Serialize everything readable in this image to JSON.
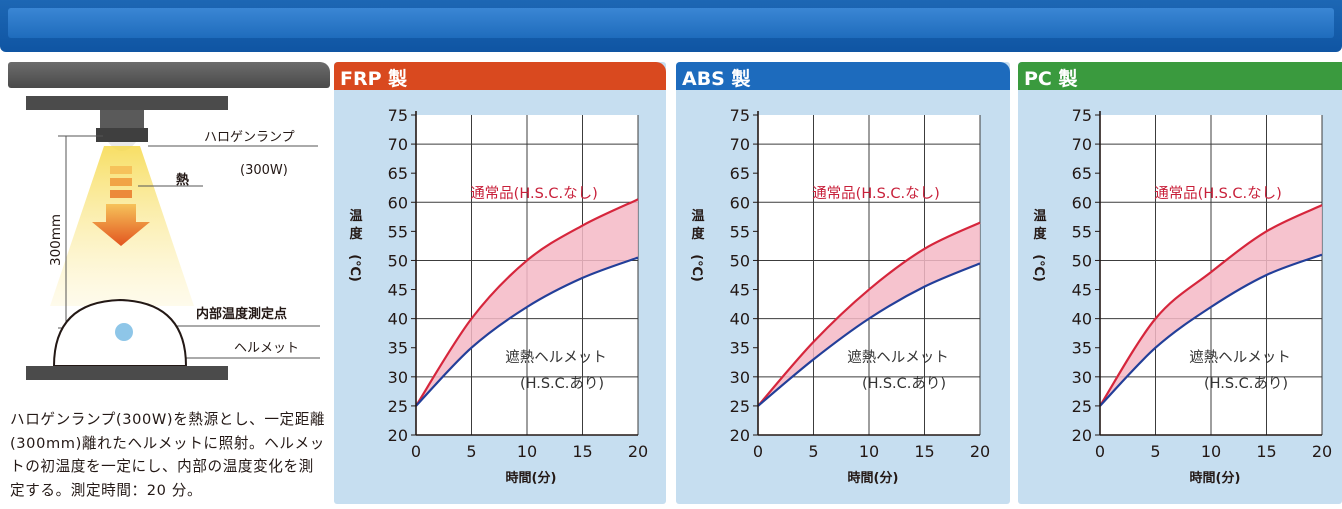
{
  "colors": {
    "top_band": "#1d67b4",
    "frp_header": "#d9491f",
    "abs_header": "#1d6bbd",
    "pc_header": "#3a9a3e",
    "panel_bg": "#c6def0",
    "standard_line": "#d6263c",
    "shield_line": "#233f99",
    "band_fill": "#f4b9c5"
  },
  "left_panel": {
    "header_text": "",
    "diagram": {
      "lamp_label": "ハロゲンランプ",
      "lamp_watt": "(300W)",
      "heat_label": "熱",
      "distance_label": "300mm",
      "measure_point_label": "内部温度測定点",
      "helmet_label": "ヘルメット"
    },
    "description": "ハロゲンランプ(300W)を熱源とし、一定距離(300mm)離れたヘルメットに照射。ヘルメットの初温度を一定にし、内部の温度変化を測定する。測定時間：20 分。"
  },
  "charts": [
    {
      "title": "FRP 製",
      "header_color": "#d9491f",
      "standard_label": "通常品(H.S.C.なし)",
      "shield_label_1": "遮熱ヘルメット",
      "shield_label_2": "(H.S.C.あり)",
      "xlabel": "時間(分)",
      "ylabel": [
        "温",
        "度",
        "(℃)"
      ]
    },
    {
      "title": "ABS 製",
      "header_color": "#1d6bbd",
      "standard_label": "通常品(H.S.C.なし)",
      "shield_label_1": "遮熱ヘルメット",
      "shield_label_2": "(H.S.C.あり)",
      "xlabel": "時間(分)",
      "ylabel": [
        "温",
        "度",
        "(℃)"
      ]
    },
    {
      "title": "PC 製",
      "header_color": "#3a9a3e",
      "standard_label": "通常品(H.S.C.なし)",
      "shield_label_1": "遮熱ヘルメット",
      "shield_label_2": "(H.S.C.あり)",
      "xlabel": "時間(分)",
      "ylabel": [
        "温",
        "度",
        "(℃)"
      ]
    }
  ],
  "chart_data": [
    {
      "type": "line",
      "title": "FRP 製",
      "xlabel": "時間(分)",
      "ylabel": "温度(℃)",
      "xlim": [
        0,
        20
      ],
      "ylim": [
        20,
        75
      ],
      "xticks": [
        0,
        5,
        10,
        15,
        20
      ],
      "yticks": [
        20,
        25,
        30,
        35,
        40,
        45,
        50,
        55,
        60,
        65,
        70,
        75
      ],
      "grid": true,
      "x": [
        0,
        5,
        10,
        15,
        20
      ],
      "series": [
        {
          "name": "通常品(H.S.C.なし)",
          "values": [
            25,
            40,
            50,
            56,
            60.5
          ]
        },
        {
          "name": "遮熱ヘルメット(H.S.C.あり)",
          "values": [
            25,
            35,
            42,
            47,
            50.5
          ]
        }
      ]
    },
    {
      "type": "line",
      "title": "ABS 製",
      "xlabel": "時間(分)",
      "ylabel": "温度(℃)",
      "xlim": [
        0,
        20
      ],
      "ylim": [
        20,
        75
      ],
      "xticks": [
        0,
        5,
        10,
        15,
        20
      ],
      "yticks": [
        20,
        25,
        30,
        35,
        40,
        45,
        50,
        55,
        60,
        65,
        70,
        75
      ],
      "grid": true,
      "x": [
        0,
        5,
        10,
        15,
        20
      ],
      "series": [
        {
          "name": "通常品(H.S.C.なし)",
          "values": [
            25,
            36,
            45,
            52,
            56.5
          ]
        },
        {
          "name": "遮熱ヘルメット(H.S.C.あり)",
          "values": [
            25,
            33,
            40,
            45.5,
            49.5
          ]
        }
      ]
    },
    {
      "type": "line",
      "title": "PC 製",
      "xlabel": "時間(分)",
      "ylabel": "温度(℃)",
      "xlim": [
        0,
        20
      ],
      "ylim": [
        20,
        75
      ],
      "xticks": [
        0,
        5,
        10,
        15,
        20
      ],
      "yticks": [
        20,
        25,
        30,
        35,
        40,
        45,
        50,
        55,
        60,
        65,
        70,
        75
      ],
      "grid": true,
      "x": [
        0,
        5,
        10,
        15,
        20
      ],
      "series": [
        {
          "name": "通常品(H.S.C.なし)",
          "values": [
            25,
            40,
            48,
            55,
            59.5
          ]
        },
        {
          "name": "遮熱ヘルメット(H.S.C.あり)",
          "values": [
            25,
            35,
            42,
            47.5,
            51
          ]
        }
      ]
    }
  ]
}
